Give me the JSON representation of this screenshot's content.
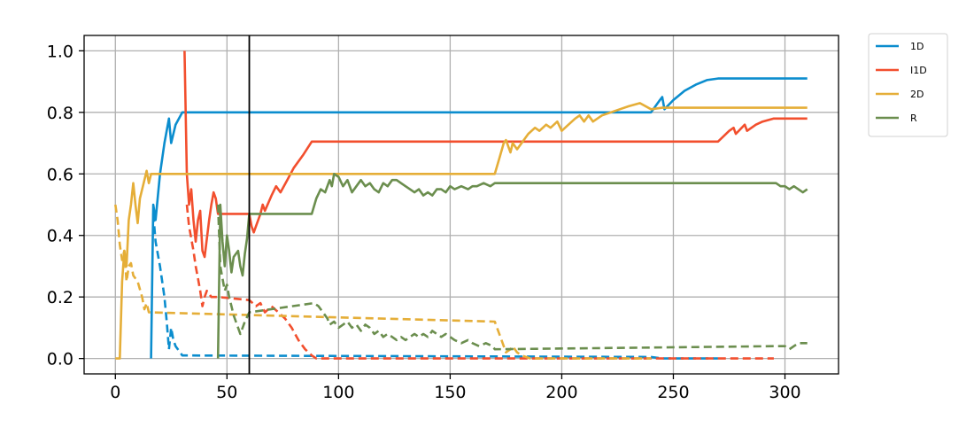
{
  "chart_data": {
    "type": "line",
    "title": "",
    "xlabel": "",
    "ylabel": "",
    "xlim": [
      -14,
      324
    ],
    "ylim": [
      -0.05,
      1.05
    ],
    "xticks": [
      0,
      50,
      100,
      150,
      200,
      250,
      300
    ],
    "yticks": [
      0.0,
      0.2,
      0.4,
      0.6,
      0.8,
      1.0
    ],
    "xtick_labels": [
      "0",
      "50",
      "100",
      "150",
      "200",
      "250",
      "300"
    ],
    "ytick_labels": [
      "0.0",
      "0.2",
      "0.4",
      "0.6",
      "0.8",
      "1.0"
    ],
    "grid": true,
    "vertical_marker_x": 60,
    "legend_position": "outside-top-right",
    "series": [
      {
        "name": "1D",
        "color": "#0b8dce",
        "solid": [
          [
            16,
            0
          ],
          [
            17,
            0.5
          ],
          [
            18,
            0.45
          ],
          [
            20,
            0.6
          ],
          [
            22,
            0.7
          ],
          [
            24,
            0.78
          ],
          [
            25,
            0.7
          ],
          [
            27,
            0.76
          ],
          [
            30,
            0.8
          ],
          [
            240,
            0.8
          ],
          [
            244,
            0.84
          ],
          [
            245,
            0.85
          ],
          [
            246,
            0.81
          ],
          [
            250,
            0.84
          ],
          [
            255,
            0.87
          ],
          [
            260,
            0.89
          ],
          [
            265,
            0.905
          ],
          [
            270,
            0.91
          ],
          [
            310,
            0.91
          ]
        ],
        "dashed": [
          [
            17,
            0.47
          ],
          [
            18,
            0.38
          ],
          [
            20,
            0.3
          ],
          [
            21,
            0.25
          ],
          [
            22,
            0.2
          ],
          [
            23,
            0.12
          ],
          [
            24,
            0.03
          ],
          [
            25,
            0.1
          ],
          [
            26,
            0.06
          ],
          [
            27,
            0.04
          ],
          [
            30,
            0.01
          ],
          [
            240,
            0.005
          ],
          [
            245,
            0.0
          ],
          [
            270,
            0.0
          ]
        ]
      },
      {
        "name": "I1D",
        "color": "#f24f2e",
        "solid": [
          [
            31,
            1.0
          ],
          [
            32,
            0.6
          ],
          [
            33,
            0.5
          ],
          [
            34,
            0.55
          ],
          [
            35,
            0.45
          ],
          [
            36,
            0.38
          ],
          [
            37,
            0.45
          ],
          [
            38,
            0.48
          ],
          [
            39,
            0.35
          ],
          [
            40,
            0.33
          ],
          [
            42,
            0.45
          ],
          [
            43,
            0.5
          ],
          [
            44,
            0.54
          ],
          [
            45,
            0.52
          ],
          [
            46,
            0.47
          ],
          [
            60,
            0.47
          ],
          [
            61,
            0.43
          ],
          [
            62,
            0.41
          ],
          [
            63,
            0.43
          ],
          [
            65,
            0.47
          ],
          [
            66,
            0.5
          ],
          [
            67,
            0.48
          ],
          [
            70,
            0.53
          ],
          [
            72,
            0.56
          ],
          [
            74,
            0.54
          ],
          [
            77,
            0.58
          ],
          [
            80,
            0.62
          ],
          [
            84,
            0.66
          ],
          [
            88,
            0.705
          ],
          [
            270,
            0.705
          ],
          [
            275,
            0.74
          ],
          [
            277,
            0.75
          ],
          [
            278,
            0.73
          ],
          [
            282,
            0.76
          ],
          [
            283,
            0.74
          ],
          [
            287,
            0.76
          ],
          [
            290,
            0.77
          ],
          [
            295,
            0.78
          ],
          [
            310,
            0.78
          ]
        ],
        "dashed": [
          [
            32,
            0.5
          ],
          [
            33,
            0.43
          ],
          [
            34,
            0.39
          ],
          [
            35,
            0.35
          ],
          [
            36,
            0.3
          ],
          [
            37,
            0.26
          ],
          [
            38,
            0.22
          ],
          [
            39,
            0.17
          ],
          [
            40,
            0.2
          ],
          [
            41,
            0.22
          ],
          [
            43,
            0.2
          ],
          [
            45,
            0.2
          ],
          [
            46,
            0.2
          ],
          [
            60,
            0.19
          ],
          [
            63,
            0.17
          ],
          [
            65,
            0.18
          ],
          [
            67,
            0.15
          ],
          [
            70,
            0.17
          ],
          [
            73,
            0.15
          ],
          [
            76,
            0.13
          ],
          [
            79,
            0.1
          ],
          [
            82,
            0.06
          ],
          [
            85,
            0.03
          ],
          [
            88,
            0.01
          ],
          [
            90,
            0.0
          ],
          [
            270,
            0.0
          ],
          [
            295,
            0.0
          ]
        ]
      },
      {
        "name": "2D",
        "color": "#e5ae38",
        "solid": [
          [
            0,
            0
          ],
          [
            2,
            0
          ],
          [
            3,
            0.25
          ],
          [
            4,
            0.35
          ],
          [
            5,
            0.3
          ],
          [
            6,
            0.45
          ],
          [
            7,
            0.5
          ],
          [
            8,
            0.57
          ],
          [
            9,
            0.5
          ],
          [
            10,
            0.44
          ],
          [
            11,
            0.52
          ],
          [
            13,
            0.58
          ],
          [
            14,
            0.61
          ],
          [
            15,
            0.57
          ],
          [
            16,
            0.6
          ],
          [
            170,
            0.6
          ],
          [
            172,
            0.65
          ],
          [
            174,
            0.7
          ],
          [
            175,
            0.71
          ],
          [
            177,
            0.67
          ],
          [
            178,
            0.7
          ],
          [
            180,
            0.68
          ],
          [
            182,
            0.7
          ],
          [
            185,
            0.73
          ],
          [
            188,
            0.75
          ],
          [
            190,
            0.74
          ],
          [
            193,
            0.76
          ],
          [
            195,
            0.75
          ],
          [
            198,
            0.77
          ],
          [
            200,
            0.74
          ],
          [
            203,
            0.76
          ],
          [
            206,
            0.78
          ],
          [
            208,
            0.79
          ],
          [
            210,
            0.77
          ],
          [
            212,
            0.79
          ],
          [
            214,
            0.77
          ],
          [
            218,
            0.79
          ],
          [
            222,
            0.8
          ],
          [
            226,
            0.81
          ],
          [
            230,
            0.82
          ],
          [
            235,
            0.83
          ],
          [
            240,
            0.81
          ],
          [
            245,
            0.815
          ],
          [
            310,
            0.815
          ]
        ],
        "dashed": [
          [
            0,
            0.5
          ],
          [
            1,
            0.45
          ],
          [
            2,
            0.37
          ],
          [
            3,
            0.32
          ],
          [
            4,
            0.35
          ],
          [
            5,
            0.25
          ],
          [
            6,
            0.3
          ],
          [
            7,
            0.31
          ],
          [
            8,
            0.27
          ],
          [
            10,
            0.25
          ],
          [
            12,
            0.2
          ],
          [
            13,
            0.16
          ],
          [
            14,
            0.18
          ],
          [
            15,
            0.15
          ],
          [
            170,
            0.12
          ],
          [
            172,
            0.08
          ],
          [
            174,
            0.04
          ],
          [
            175,
            0.02
          ],
          [
            177,
            0.03
          ],
          [
            178,
            0.04
          ],
          [
            180,
            0.02
          ],
          [
            182,
            0.01
          ],
          [
            186,
            0.0
          ],
          [
            240,
            0.0
          ]
        ]
      },
      {
        "name": "R",
        "color": "#6b8e4e",
        "solid": [
          [
            46,
            0
          ],
          [
            47,
            0.5
          ],
          [
            48,
            0.38
          ],
          [
            49,
            0.3
          ],
          [
            50,
            0.4
          ],
          [
            51,
            0.35
          ],
          [
            52,
            0.28
          ],
          [
            53,
            0.33
          ],
          [
            55,
            0.35
          ],
          [
            56,
            0.3
          ],
          [
            57,
            0.27
          ],
          [
            58,
            0.34
          ],
          [
            59,
            0.39
          ],
          [
            60,
            0.47
          ],
          [
            88,
            0.47
          ],
          [
            90,
            0.52
          ],
          [
            92,
            0.55
          ],
          [
            94,
            0.54
          ],
          [
            96,
            0.58
          ],
          [
            97,
            0.56
          ],
          [
            98,
            0.6
          ],
          [
            100,
            0.59
          ],
          [
            102,
            0.56
          ],
          [
            104,
            0.58
          ],
          [
            106,
            0.54
          ],
          [
            108,
            0.56
          ],
          [
            110,
            0.58
          ],
          [
            112,
            0.56
          ],
          [
            114,
            0.57
          ],
          [
            116,
            0.55
          ],
          [
            118,
            0.54
          ],
          [
            120,
            0.57
          ],
          [
            122,
            0.56
          ],
          [
            124,
            0.58
          ],
          [
            126,
            0.58
          ],
          [
            128,
            0.57
          ],
          [
            130,
            0.56
          ],
          [
            132,
            0.55
          ],
          [
            134,
            0.54
          ],
          [
            136,
            0.55
          ],
          [
            138,
            0.53
          ],
          [
            140,
            0.54
          ],
          [
            142,
            0.53
          ],
          [
            144,
            0.55
          ],
          [
            146,
            0.55
          ],
          [
            148,
            0.54
          ],
          [
            150,
            0.56
          ],
          [
            152,
            0.55
          ],
          [
            155,
            0.56
          ],
          [
            158,
            0.55
          ],
          [
            160,
            0.56
          ],
          [
            162,
            0.56
          ],
          [
            165,
            0.57
          ],
          [
            168,
            0.56
          ],
          [
            170,
            0.57
          ],
          [
            296,
            0.57
          ],
          [
            298,
            0.56
          ],
          [
            300,
            0.56
          ],
          [
            302,
            0.55
          ],
          [
            304,
            0.56
          ],
          [
            306,
            0.55
          ],
          [
            308,
            0.54
          ],
          [
            310,
            0.55
          ]
        ],
        "dashed": [
          [
            46,
            0.5
          ],
          [
            47,
            0.3
          ],
          [
            48,
            0.26
          ],
          [
            49,
            0.22
          ],
          [
            50,
            0.24
          ],
          [
            51,
            0.2
          ],
          [
            52,
            0.17
          ],
          [
            53,
            0.14
          ],
          [
            54,
            0.12
          ],
          [
            55,
            0.1
          ],
          [
            56,
            0.08
          ],
          [
            57,
            0.1
          ],
          [
            58,
            0.12
          ],
          [
            60,
            0.15
          ],
          [
            89,
            0.18
          ],
          [
            91,
            0.17
          ],
          [
            93,
            0.15
          ],
          [
            95,
            0.13
          ],
          [
            96,
            0.11
          ],
          [
            98,
            0.12
          ],
          [
            100,
            0.1
          ],
          [
            102,
            0.11
          ],
          [
            104,
            0.12
          ],
          [
            106,
            0.1
          ],
          [
            108,
            0.11
          ],
          [
            110,
            0.09
          ],
          [
            112,
            0.11
          ],
          [
            114,
            0.1
          ],
          [
            116,
            0.08
          ],
          [
            118,
            0.09
          ],
          [
            120,
            0.07
          ],
          [
            122,
            0.08
          ],
          [
            124,
            0.07
          ],
          [
            126,
            0.06
          ],
          [
            128,
            0.07
          ],
          [
            130,
            0.06
          ],
          [
            132,
            0.07
          ],
          [
            134,
            0.08
          ],
          [
            136,
            0.07
          ],
          [
            138,
            0.08
          ],
          [
            140,
            0.07
          ],
          [
            142,
            0.09
          ],
          [
            144,
            0.08
          ],
          [
            146,
            0.07
          ],
          [
            148,
            0.08
          ],
          [
            150,
            0.07
          ],
          [
            152,
            0.06
          ],
          [
            155,
            0.05
          ],
          [
            158,
            0.06
          ],
          [
            160,
            0.05
          ],
          [
            163,
            0.04
          ],
          [
            166,
            0.05
          ],
          [
            169,
            0.04
          ],
          [
            170,
            0.03
          ],
          [
            296,
            0.04
          ],
          [
            298,
            0.04
          ],
          [
            300,
            0.04
          ],
          [
            302,
            0.03
          ],
          [
            304,
            0.04
          ],
          [
            306,
            0.05
          ],
          [
            308,
            0.05
          ],
          [
            310,
            0.05
          ]
        ]
      }
    ]
  }
}
